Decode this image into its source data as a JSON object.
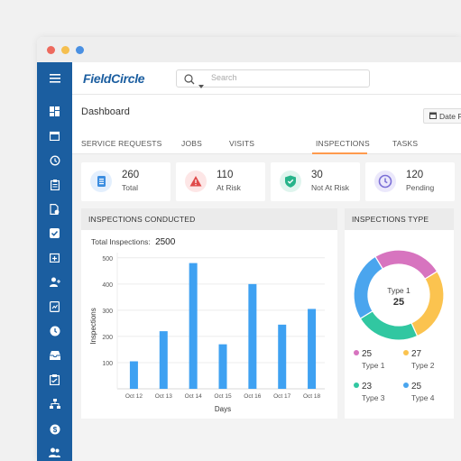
{
  "window": {
    "dots": [
      "#ed6a5e",
      "#f5bf4f",
      "#4a90e2"
    ]
  },
  "topbar": {
    "logo": "FieldCircle",
    "search_placeholder": "Search"
  },
  "header": {
    "title": "Dashboard",
    "date_range_label": "Date Range"
  },
  "tabs": [
    {
      "label": "SERVICE REQUESTS"
    },
    {
      "label": "JOBS"
    },
    {
      "label": "VISITS"
    },
    {
      "label": "INSPECTIONS",
      "active": true
    },
    {
      "label": "TASKS"
    }
  ],
  "kpis": [
    {
      "value": "260",
      "label": "Total",
      "icon": "list-icon",
      "color": "#3b8de0"
    },
    {
      "value": "110",
      "label": "At Risk",
      "icon": "warning-icon",
      "color": "#e04b4b"
    },
    {
      "value": "30",
      "label": "Not At Risk",
      "icon": "shield-check-icon",
      "color": "#27b48a"
    },
    {
      "value": "120",
      "label": "Pending",
      "icon": "clock-icon",
      "color": "#7b6fd6"
    }
  ],
  "inspections_conducted": {
    "title": "INSPECTIONS CONDUCTED",
    "total_label": "Total Inspections:",
    "total_value": "2500"
  },
  "chart_data": {
    "type": "bar",
    "categories": [
      "Oct 12",
      "Oct 13",
      "Oct 14",
      "Oct 15",
      "Oct 16",
      "Oct 17",
      "Oct 18"
    ],
    "values": [
      105,
      220,
      480,
      170,
      400,
      245,
      305
    ],
    "xlabel": "Days",
    "ylabel": "Inspections",
    "yticks": [
      100,
      200,
      300,
      400,
      500
    ],
    "ylim": [
      0,
      520
    ],
    "bar_color": "#3ea1f2",
    "grid": true
  },
  "inspections_type": {
    "title": "INSPECTIONS TYPE",
    "center_label": "Type 1",
    "center_value": "25",
    "segments": [
      {
        "name": "Type 1",
        "value": 25,
        "color": "#d774bf"
      },
      {
        "name": "Type 2",
        "value": 27,
        "color": "#fbc34f"
      },
      {
        "name": "Type 3",
        "value": 23,
        "color": "#31c7a1"
      },
      {
        "name": "Type 4",
        "value": 25,
        "color": "#4aa5ee"
      }
    ]
  },
  "sidebar": {
    "icons": [
      "menu-icon",
      "dashboard-icon",
      "calendar-icon",
      "history-icon",
      "clipboard-icon",
      "document-settings-icon",
      "checkbox-icon",
      "calendar-plus-icon",
      "user-add-icon",
      "report-icon",
      "clock-icon",
      "inbox-icon",
      "checklist-icon",
      "sitemap-icon",
      "dollar-icon",
      "users-icon"
    ]
  }
}
